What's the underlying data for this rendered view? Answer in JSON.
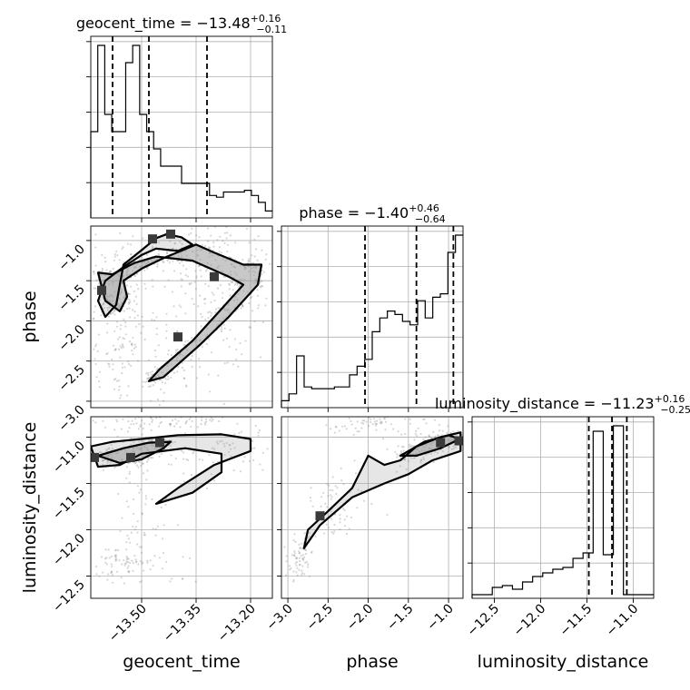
{
  "chart_data": {
    "type": "corner",
    "parameters": [
      "geocent_time",
      "phase",
      "luminosity_distance"
    ],
    "titles": {
      "geocent_time": {
        "prefix": "geocent_time = ",
        "median": "−13.48",
        "plus": "+0.16",
        "minus": "−0.11"
      },
      "phase": {
        "prefix": "phase = ",
        "median": "−1.40",
        "plus": "+0.46",
        "minus": "−0.64"
      },
      "luminosity_distance": {
        "prefix": "luminosity_distance = ",
        "median": "−11.23",
        "plus": "+0.16",
        "minus": "−0.25"
      }
    },
    "axis_labels": {
      "geocent_time": "geocent_time",
      "phase": "phase",
      "luminosity_distance": "luminosity_distance"
    },
    "ranges": {
      "geocent_time": [
        -13.64,
        -13.14
      ],
      "phase": [
        -3.08,
        -0.82
      ],
      "luminosity_distance": [
        -12.74,
        -10.78
      ]
    },
    "ticks": {
      "geocent_time": [
        -13.5,
        -13.35,
        -13.2
      ],
      "phase": [
        -3.0,
        -2.5,
        -2.0,
        -1.5,
        -1.0
      ],
      "luminosity_distance": [
        -12.5,
        -12.0,
        -11.5,
        -11.0
      ]
    },
    "tick_labels": {
      "geocent_time": [
        "−13.50",
        "−13.35",
        "−13.20"
      ],
      "phase": [
        "−3.0",
        "−2.5",
        "−2.0",
        "−1.5",
        "−1.0"
      ],
      "luminosity_distance": [
        "−12.5",
        "−12.0",
        "−11.5",
        "−11.0"
      ]
    },
    "quantiles": {
      "geocent_time": [
        -13.58,
        -13.48,
        -13.32
      ],
      "phase": [
        -2.04,
        -1.4,
        -0.94
      ],
      "luminosity_distance": [
        -11.48,
        -11.23,
        -11.07
      ]
    },
    "histograms": {
      "geocent_time": [
        5,
        10,
        6,
        5,
        5,
        9,
        10,
        6,
        5,
        4,
        3,
        3,
        3,
        2,
        2,
        2,
        2,
        1.3,
        1.2,
        1.5,
        1.5,
        1.5,
        1.6,
        1.3,
        0.9,
        0.4
      ],
      "phase": [
        0.2,
        0.4,
        1.5,
        0.6,
        0.55,
        0.55,
        0.55,
        0.6,
        0.6,
        0.95,
        1.2,
        1.4,
        2.2,
        2.6,
        2.8,
        2.7,
        2.5,
        2.4,
        3.1,
        2.6,
        3.2,
        3.3,
        4.5,
        5.0
      ],
      "luminosity_distance": [
        0.02,
        0.02,
        0.06,
        0.07,
        0.05,
        0.09,
        0.12,
        0.14,
        0.16,
        0.17,
        0.22,
        0.25,
        0.92,
        0.24,
        0.95,
        0.02,
        0.02,
        0.02
      ]
    },
    "panels": {
      "phase_vs_geocent_time": {
        "level1": [
          [
            -13.55,
            -1.3
          ],
          [
            -13.5,
            -1.12
          ],
          [
            -13.46,
            -0.97
          ],
          [
            -13.43,
            -0.92
          ],
          [
            -13.39,
            -0.96
          ],
          [
            -13.36,
            -1.05
          ],
          [
            -13.4,
            -1.13
          ],
          [
            -13.46,
            -1.1
          ],
          [
            -13.5,
            -1.18
          ],
          [
            -13.55,
            -1.33
          ],
          [
            -13.6,
            -1.5
          ],
          [
            -13.62,
            -1.75
          ],
          [
            -13.6,
            -1.95
          ],
          [
            -13.57,
            -1.8
          ],
          [
            -13.56,
            -1.55
          ],
          [
            -13.55,
            -1.3
          ]
        ],
        "level2": [
          [
            -13.62,
            -1.4
          ],
          [
            -13.6,
            -1.75
          ],
          [
            -13.56,
            -1.88
          ],
          [
            -13.54,
            -1.7
          ],
          [
            -13.55,
            -1.5
          ],
          [
            -13.5,
            -1.35
          ],
          [
            -13.44,
            -1.22
          ],
          [
            -13.35,
            -1.05
          ],
          [
            -13.3,
            -1.15
          ],
          [
            -13.22,
            -1.3
          ],
          [
            -13.17,
            -1.3
          ],
          [
            -13.18,
            -1.55
          ],
          [
            -13.26,
            -1.95
          ],
          [
            -13.34,
            -2.3
          ],
          [
            -13.44,
            -2.7
          ],
          [
            -13.48,
            -2.75
          ],
          [
            -13.45,
            -2.6
          ],
          [
            -13.36,
            -2.25
          ],
          [
            -13.28,
            -1.85
          ],
          [
            -13.22,
            -1.55
          ],
          [
            -13.26,
            -1.45
          ],
          [
            -13.36,
            -1.25
          ],
          [
            -13.46,
            -1.2
          ],
          [
            -13.52,
            -1.28
          ],
          [
            -13.58,
            -1.42
          ],
          [
            -13.62,
            -1.4
          ]
        ],
        "dense": [
          [
            -13.61,
            -1.62
          ],
          [
            -13.47,
            -0.98
          ],
          [
            -13.42,
            -0.92
          ],
          [
            -13.3,
            -1.45
          ],
          [
            -13.4,
            -2.2
          ]
        ],
        "cloud": [
          [
            -13.6,
            -1.7,
            0.1,
            0.5
          ],
          [
            -13.48,
            -1.2,
            0.14,
            0.3
          ],
          [
            -13.33,
            -1.2,
            0.12,
            0.3
          ],
          [
            -13.25,
            -1.6,
            0.06,
            0.4
          ],
          [
            -13.36,
            -2.2,
            0.08,
            0.5
          ],
          [
            -13.52,
            -2.6,
            0.06,
            0.4
          ],
          [
            -13.56,
            -2.05,
            0.04,
            0.5
          ]
        ]
      },
      "luminosity_distance_vs_geocent_time": {
        "level1": [
          [
            -13.64,
            -11.1
          ],
          [
            -13.58,
            -11.05
          ],
          [
            -13.5,
            -11.02
          ],
          [
            -13.4,
            -10.98
          ],
          [
            -13.28,
            -10.97
          ],
          [
            -13.2,
            -11.02
          ],
          [
            -13.2,
            -11.15
          ],
          [
            -13.3,
            -11.3
          ],
          [
            -13.4,
            -11.55
          ],
          [
            -13.46,
            -11.72
          ],
          [
            -13.36,
            -11.6
          ],
          [
            -13.28,
            -11.38
          ],
          [
            -13.28,
            -11.18
          ],
          [
            -13.38,
            -11.12
          ],
          [
            -13.5,
            -11.18
          ],
          [
            -13.56,
            -11.3
          ],
          [
            -13.62,
            -11.32
          ],
          [
            -13.64,
            -11.1
          ]
        ],
        "level2": [
          [
            -13.62,
            -11.2
          ],
          [
            -13.55,
            -11.12
          ],
          [
            -13.48,
            -11.06
          ],
          [
            -13.42,
            -11.05
          ],
          [
            -13.44,
            -11.12
          ],
          [
            -13.5,
            -11.24
          ],
          [
            -13.56,
            -11.28
          ],
          [
            -13.62,
            -11.2
          ]
        ],
        "dense": [
          [
            -13.63,
            -11.22
          ],
          [
            -13.53,
            -11.22
          ],
          [
            -13.45,
            -11.06
          ]
        ],
        "cloud": [
          [
            -13.55,
            -11.2,
            0.08,
            0.15
          ],
          [
            -13.3,
            -11.1,
            0.08,
            0.15
          ],
          [
            -13.48,
            -12.0,
            0.06,
            0.4
          ],
          [
            -13.55,
            -12.35,
            0.05,
            0.1
          ],
          [
            -13.45,
            -10.82,
            0.1,
            0.04
          ]
        ]
      },
      "luminosity_distance_vs_phase": {
        "level1": [
          [
            -2.0,
            -11.2
          ],
          [
            -1.8,
            -11.3
          ],
          [
            -1.6,
            -11.25
          ],
          [
            -1.4,
            -11.1
          ],
          [
            -1.1,
            -11.0
          ],
          [
            -0.85,
            -10.95
          ],
          [
            -0.85,
            -11.15
          ],
          [
            -1.2,
            -11.25
          ],
          [
            -1.5,
            -11.4
          ],
          [
            -1.8,
            -11.5
          ],
          [
            -2.2,
            -11.65
          ],
          [
            -2.6,
            -11.95
          ],
          [
            -2.8,
            -12.2
          ],
          [
            -2.75,
            -12.0
          ],
          [
            -2.5,
            -11.8
          ],
          [
            -2.2,
            -11.55
          ],
          [
            -2.0,
            -11.2
          ]
        ],
        "level2": [
          [
            -1.6,
            -11.2
          ],
          [
            -1.3,
            -11.05
          ],
          [
            -1.0,
            -10.98
          ],
          [
            -0.86,
            -11.02
          ],
          [
            -1.1,
            -11.12
          ],
          [
            -1.4,
            -11.2
          ],
          [
            -1.6,
            -11.2
          ]
        ],
        "dense": [
          [
            -0.87,
            -11.04
          ],
          [
            -1.1,
            -11.06
          ],
          [
            -2.6,
            -11.85
          ]
        ],
        "cloud": [
          [
            -1.2,
            -11.1,
            0.25,
            0.12
          ],
          [
            -2.4,
            -11.75,
            0.18,
            0.15
          ],
          [
            -2.85,
            -12.3,
            0.08,
            0.1
          ],
          [
            -2.0,
            -10.85,
            0.35,
            0.08
          ]
        ]
      }
    }
  }
}
